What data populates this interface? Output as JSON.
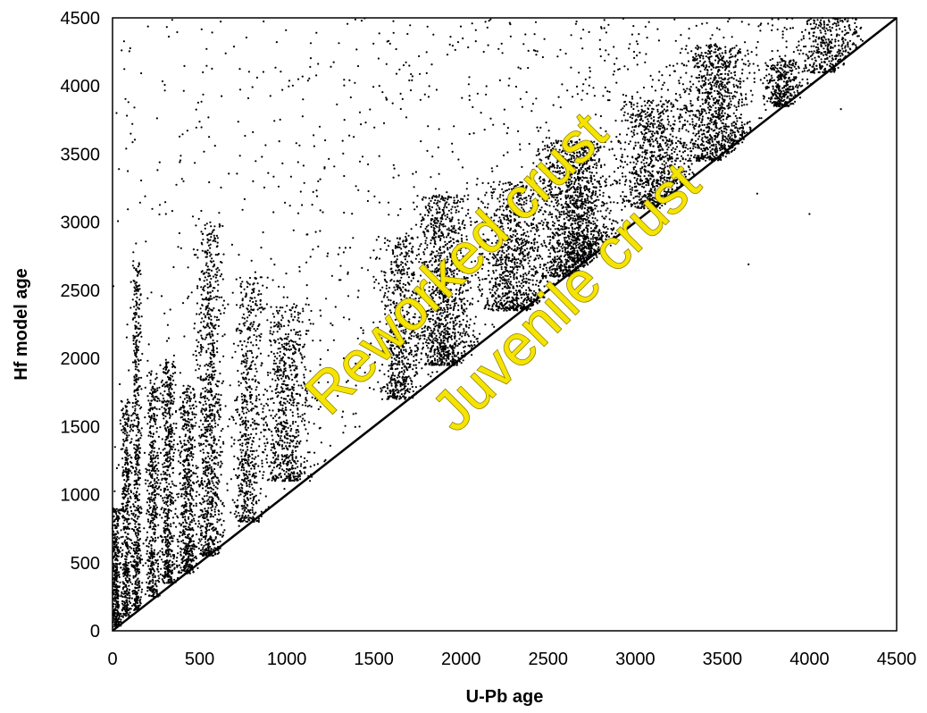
{
  "chart_data": {
    "type": "scatter",
    "title": "",
    "xlabel": "U-Pb age",
    "ylabel": "Hf model age",
    "xlim": [
      0,
      4500
    ],
    "ylim": [
      0,
      4500
    ],
    "xticks": [
      "0",
      "500",
      "1000",
      "1500",
      "2000",
      "2500",
      "3000",
      "3500",
      "4000",
      "4500"
    ],
    "yticks": [
      "0",
      "500",
      "1000",
      "1500",
      "2000",
      "2500",
      "3000",
      "3500",
      "4000",
      "4500"
    ],
    "grid": false,
    "legend": "none",
    "marker_color": "#000000",
    "reference_line": {
      "from": [
        0,
        0
      ],
      "to": [
        4500,
        4500
      ],
      "color": "#000000"
    },
    "annotations": [
      {
        "text": "Reworked crust",
        "x": 2050,
        "y": 2600,
        "rotation_deg": -45,
        "color": "#f5e400"
      },
      {
        "text": "Juvenile crust",
        "x": 2680,
        "y": 2350,
        "rotation_deg": -45,
        "color": "#f5e400"
      }
    ],
    "point_clusters": [
      {
        "x_center": 20,
        "x_spread": 25,
        "y_min": 30,
        "y_max": 900,
        "count": 350
      },
      {
        "x_center": 80,
        "x_spread": 25,
        "y_min": 100,
        "y_max": 1700,
        "count": 450
      },
      {
        "x_center": 140,
        "x_spread": 20,
        "y_min": 150,
        "y_max": 2700,
        "count": 550
      },
      {
        "x_center": 230,
        "x_spread": 30,
        "y_min": 250,
        "y_max": 1900,
        "count": 450
      },
      {
        "x_center": 320,
        "x_spread": 35,
        "y_min": 350,
        "y_max": 2000,
        "count": 550
      },
      {
        "x_center": 430,
        "x_spread": 40,
        "y_min": 420,
        "y_max": 1800,
        "count": 550
      },
      {
        "x_center": 560,
        "x_spread": 60,
        "y_min": 550,
        "y_max": 3000,
        "count": 900
      },
      {
        "x_center": 780,
        "x_spread": 70,
        "y_min": 800,
        "y_max": 2600,
        "count": 600
      },
      {
        "x_center": 1000,
        "x_spread": 110,
        "y_min": 1100,
        "y_max": 2400,
        "count": 700
      },
      {
        "x_center": 1650,
        "x_spread": 90,
        "y_min": 1700,
        "y_max": 2900,
        "count": 600
      },
      {
        "x_center": 1900,
        "x_spread": 130,
        "y_min": 1950,
        "y_max": 3200,
        "count": 1100
      },
      {
        "x_center": 2300,
        "x_spread": 150,
        "y_min": 2350,
        "y_max": 3300,
        "count": 900
      },
      {
        "x_center": 2650,
        "x_spread": 160,
        "y_min": 2600,
        "y_max": 3600,
        "count": 1500
      },
      {
        "x_center": 3100,
        "x_spread": 150,
        "y_min": 3100,
        "y_max": 3900,
        "count": 800
      },
      {
        "x_center": 3450,
        "x_spread": 150,
        "y_min": 3450,
        "y_max": 4300,
        "count": 900
      },
      {
        "x_center": 3850,
        "x_spread": 80,
        "y_min": 3850,
        "y_max": 4200,
        "count": 300
      },
      {
        "x_center": 4100,
        "x_spread": 120,
        "y_min": 4100,
        "y_max": 4500,
        "count": 250
      }
    ],
    "sparse_scatter_count": 1300
  }
}
